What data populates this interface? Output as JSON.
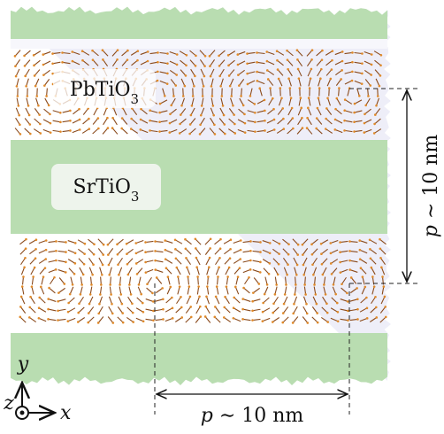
{
  "layers": [
    {
      "label": "PbTiO",
      "subscript": "3"
    },
    {
      "label": "SrTiO",
      "subscript": "3"
    }
  ],
  "period": {
    "symbol": "p",
    "relation": "∼ 10 nm"
  },
  "axes": {
    "x": "x",
    "y": "y",
    "z": "z"
  }
}
